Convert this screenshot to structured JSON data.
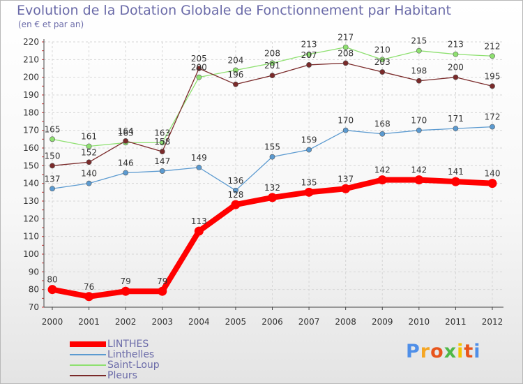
{
  "title": "Evolution de la Dotation Globale de Fonctionnement par Habitant",
  "subtitle": "(en € et par an)",
  "logo": {
    "text": "Proxiti",
    "colors": [
      "#4f8fe8",
      "#f5a623",
      "#e8551c",
      "#4fb848",
      "#f5c400",
      "#e8551c",
      "#4f8fe8"
    ]
  },
  "chart_data": {
    "type": "line",
    "title": "Evolution de la Dotation Globale de Fonctionnement par Habitant",
    "subtitle": "(en € et par an)",
    "xlabel": "",
    "ylabel": "",
    "x": [
      "2000",
      "2001",
      "2002",
      "2003",
      "2004",
      "2005",
      "2006",
      "2007",
      "2008",
      "2009",
      "2010",
      "2011",
      "2012"
    ],
    "ylim": [
      70,
      220
    ],
    "yticks": [
      "70",
      "80",
      "90",
      "100",
      "110",
      "120",
      "130",
      "140",
      "150",
      "160",
      "170",
      "180",
      "190",
      "200",
      "210",
      "220"
    ],
    "grid": true,
    "legend_position": "bottom-left",
    "series": [
      {
        "name": "LINTHES",
        "color": "#ff0000",
        "values": [
          80,
          76,
          79,
          79,
          113,
          128,
          132,
          135,
          137,
          142,
          142,
          141,
          140
        ],
        "emphasis": true
      },
      {
        "name": "Linthelles",
        "color": "#5b9ad0",
        "values": [
          137,
          140,
          146,
          147,
          149,
          136,
          155,
          159,
          170,
          168,
          170,
          171,
          172
        ]
      },
      {
        "name": "Saint-Loup",
        "color": "#8ee070",
        "values": [
          165,
          161,
          163,
          163,
          200,
          204,
          208,
          213,
          217,
          210,
          215,
          213,
          212
        ]
      },
      {
        "name": "Pleurs",
        "color": "#7a2a2a",
        "values": [
          150,
          152,
          164,
          158,
          205,
          196,
          201,
          207,
          208,
          203,
          198,
          200,
          195
        ]
      }
    ]
  }
}
